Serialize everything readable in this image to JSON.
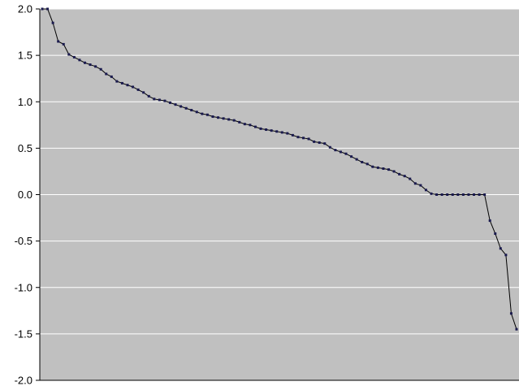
{
  "chart_data": {
    "type": "line",
    "title": "",
    "xlabel": "",
    "ylabel": "",
    "ylim": [
      -2.0,
      2.0
    ],
    "y_ticks": [
      "2.0",
      "1.5",
      "1.0",
      "0.5",
      "0.0",
      "-0.5",
      "-1.0",
      "-1.5",
      "-2.0"
    ],
    "grid": "horizontal",
    "legend": "none",
    "colors": {
      "plot_background": "#c0c0c0",
      "gridline": "#ffffff",
      "series_line": "#000000",
      "marker": "#1a1a4e"
    },
    "series": [
      {
        "values": [
          2.0,
          2.0,
          1.85,
          1.65,
          1.62,
          1.51,
          1.48,
          1.45,
          1.42,
          1.4,
          1.38,
          1.35,
          1.3,
          1.27,
          1.22,
          1.2,
          1.18,
          1.16,
          1.13,
          1.1,
          1.06,
          1.03,
          1.02,
          1.01,
          0.99,
          0.97,
          0.95,
          0.93,
          0.91,
          0.89,
          0.87,
          0.86,
          0.84,
          0.83,
          0.82,
          0.81,
          0.8,
          0.78,
          0.76,
          0.75,
          0.73,
          0.71,
          0.7,
          0.69,
          0.68,
          0.67,
          0.66,
          0.64,
          0.62,
          0.61,
          0.6,
          0.57,
          0.56,
          0.55,
          0.51,
          0.48,
          0.46,
          0.44,
          0.41,
          0.38,
          0.35,
          0.33,
          0.3,
          0.29,
          0.28,
          0.27,
          0.25,
          0.22,
          0.2,
          0.17,
          0.12,
          0.1,
          0.05,
          0.01,
          0.0,
          0.0,
          0.0,
          0.0,
          0.0,
          0.0,
          0.0,
          0.0,
          0.0,
          0.0,
          -0.28,
          -0.42,
          -0.58,
          -0.65,
          -1.28,
          -1.45
        ]
      }
    ]
  }
}
